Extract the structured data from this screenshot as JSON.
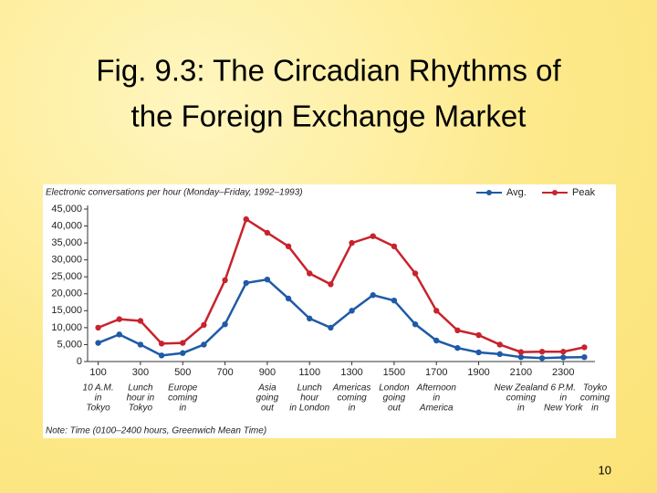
{
  "slide": {
    "title": [
      "Fig. 9.3: The Circadian Rhythms  of",
      "the Foreign Exchange Market"
    ],
    "page_number": "10"
  },
  "chart_data": {
    "type": "line",
    "y_label": "Electronic conversations per hour (Monday–Friday, 1992–1993)",
    "note": "Note: Time (0100–2400 hours, Greenwich Mean Time)",
    "x": [
      100,
      200,
      300,
      400,
      500,
      600,
      700,
      800,
      900,
      1000,
      1100,
      1200,
      1300,
      1400,
      1500,
      1600,
      1700,
      1800,
      1900,
      2000,
      2100,
      2200,
      2300,
      2400
    ],
    "series": [
      {
        "name": "Avg.",
        "color": "#1f5aa6",
        "values": [
          5500,
          8000,
          5000,
          1800,
          2500,
          5000,
          11000,
          23200,
          24200,
          18600,
          12700,
          10000,
          15000,
          19600,
          18000,
          11000,
          6200,
          4000,
          2700,
          2200,
          1300,
          1000,
          1200,
          1300
        ]
      },
      {
        "name": "Peak",
        "color": "#c8232c",
        "values": [
          10000,
          12500,
          12000,
          5300,
          5500,
          10800,
          24000,
          42000,
          38000,
          34000,
          26000,
          22800,
          35000,
          37000,
          34000,
          26000,
          15000,
          9200,
          7800,
          5000,
          2800,
          2900,
          2900,
          4200
        ]
      }
    ],
    "xlim": [
      50,
      2450
    ],
    "ylim": [
      0,
      45000
    ],
    "xticks": [
      100,
      300,
      500,
      700,
      900,
      1100,
      1300,
      1500,
      1700,
      1900,
      2100,
      2300
    ],
    "yticks": [
      0,
      {
        "value": 5000,
        "label": "5,000"
      },
      {
        "value": 10000,
        "label": "10,000"
      },
      {
        "value": 15000,
        "label": "15,000"
      },
      {
        "value": 20000,
        "label": "20,000"
      },
      {
        "value": 25000,
        "label": "25,000"
      },
      {
        "value": 30000,
        "label": "30,000"
      },
      {
        "value": 35000,
        "label": "35,000"
      },
      {
        "value": 40000,
        "label": "40,000"
      },
      {
        "value": 45000,
        "label": "45,000"
      }
    ],
    "annotations": [
      {
        "x": 100,
        "lines": [
          "10 A.M.",
          "in",
          "Tokyo"
        ]
      },
      {
        "x": 300,
        "lines": [
          "Lunch",
          "hour in",
          "Tokyo"
        ]
      },
      {
        "x": 500,
        "lines": [
          "Europe",
          "coming",
          "in"
        ]
      },
      {
        "x": 900,
        "lines": [
          "Asia",
          "going",
          "out"
        ]
      },
      {
        "x": 1100,
        "lines": [
          "Lunch",
          "hour",
          "in London"
        ]
      },
      {
        "x": 1300,
        "lines": [
          "Americas",
          "coming",
          "in"
        ]
      },
      {
        "x": 1500,
        "lines": [
          "London",
          "going",
          "out"
        ]
      },
      {
        "x": 1700,
        "lines": [
          "Afternoon",
          "in",
          "America"
        ]
      },
      {
        "x": 2100,
        "lines": [
          "New Zealand",
          "coming",
          "in"
        ]
      },
      {
        "x": 2300,
        "lines": [
          "6 P.M.",
          "in",
          "New York"
        ]
      },
      {
        "x": 2450,
        "lines": [
          "Toyko",
          "coming",
          "in"
        ]
      }
    ]
  }
}
